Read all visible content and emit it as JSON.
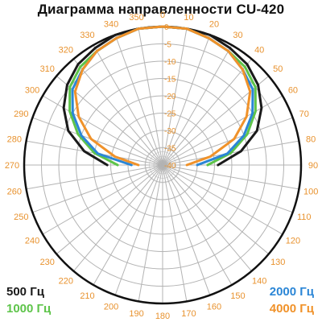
{
  "chart_data": {
    "type": "polar-line",
    "title": "Диаграмма направленности CU-420",
    "angle_ticks": [
      0,
      10,
      20,
      30,
      40,
      50,
      60,
      70,
      80,
      90,
      100,
      110,
      120,
      130,
      140,
      150,
      160,
      170,
      180,
      190,
      200,
      210,
      220,
      230,
      240,
      250,
      260,
      270,
      280,
      290,
      300,
      310,
      320,
      330,
      340,
      350
    ],
    "radial_ticks": [
      "0",
      "-5",
      "-10",
      "-15",
      "-20",
      "-25",
      "-30",
      "-35",
      "-40"
    ],
    "radial_range": [
      -40,
      0
    ],
    "grid": true,
    "legend_position": "bottom corners",
    "series": [
      {
        "name": "500 Гц",
        "color": "#1a1a1a",
        "points": [
          [
            0,
            0
          ],
          [
            10,
            0
          ],
          [
            20,
            0
          ],
          [
            30,
            -1
          ],
          [
            40,
            -2
          ],
          [
            50,
            -4
          ],
          [
            60,
            -7
          ],
          [
            70,
            -11
          ],
          [
            80,
            -17
          ],
          [
            90,
            -24
          ],
          [
            270,
            -24
          ],
          [
            280,
            -17
          ],
          [
            290,
            -11
          ],
          [
            300,
            -7
          ],
          [
            310,
            -4
          ],
          [
            320,
            -2
          ],
          [
            330,
            -1
          ],
          [
            340,
            0
          ],
          [
            350,
            0
          ]
        ]
      },
      {
        "name": "1000 Гц",
        "color": "#5ec44a",
        "points": [
          [
            0,
            0
          ],
          [
            10,
            0
          ],
          [
            20,
            -1
          ],
          [
            30,
            -2
          ],
          [
            40,
            -3
          ],
          [
            50,
            -5
          ],
          [
            60,
            -9
          ],
          [
            70,
            -14
          ],
          [
            80,
            -20
          ],
          [
            90,
            -27
          ],
          [
            270,
            -27
          ],
          [
            280,
            -20
          ],
          [
            290,
            -14
          ],
          [
            300,
            -9
          ],
          [
            310,
            -5
          ],
          [
            320,
            -3
          ],
          [
            330,
            -2
          ],
          [
            340,
            -1
          ],
          [
            350,
            0
          ]
        ]
      },
      {
        "name": "2000 Гц",
        "color": "#2b86d6",
        "points": [
          [
            0,
            0
          ],
          [
            10,
            0
          ],
          [
            20,
            -1
          ],
          [
            30,
            -2
          ],
          [
            40,
            -4
          ],
          [
            50,
            -6
          ],
          [
            60,
            -10
          ],
          [
            70,
            -15
          ],
          [
            80,
            -21
          ],
          [
            90,
            -30
          ],
          [
            270,
            -31
          ],
          [
            280,
            -21
          ],
          [
            290,
            -15
          ],
          [
            300,
            -10
          ],
          [
            310,
            -6
          ],
          [
            320,
            -4
          ],
          [
            330,
            -2
          ],
          [
            340,
            -1
          ],
          [
            350,
            0
          ]
        ]
      },
      {
        "name": "4000 Гц",
        "color": "#f0922a",
        "points": [
          [
            0,
            0
          ],
          [
            10,
            0
          ],
          [
            20,
            -1
          ],
          [
            30,
            -2
          ],
          [
            40,
            -4
          ],
          [
            50,
            -7
          ],
          [
            60,
            -12
          ],
          [
            70,
            -18
          ],
          [
            80,
            -26
          ],
          [
            90,
            -33
          ],
          [
            270,
            -33
          ],
          [
            280,
            -26
          ],
          [
            290,
            -18
          ],
          [
            300,
            -12
          ],
          [
            310,
            -7
          ],
          [
            320,
            -4
          ],
          [
            330,
            -2
          ],
          [
            340,
            -1
          ],
          [
            350,
            0
          ]
        ]
      }
    ]
  }
}
